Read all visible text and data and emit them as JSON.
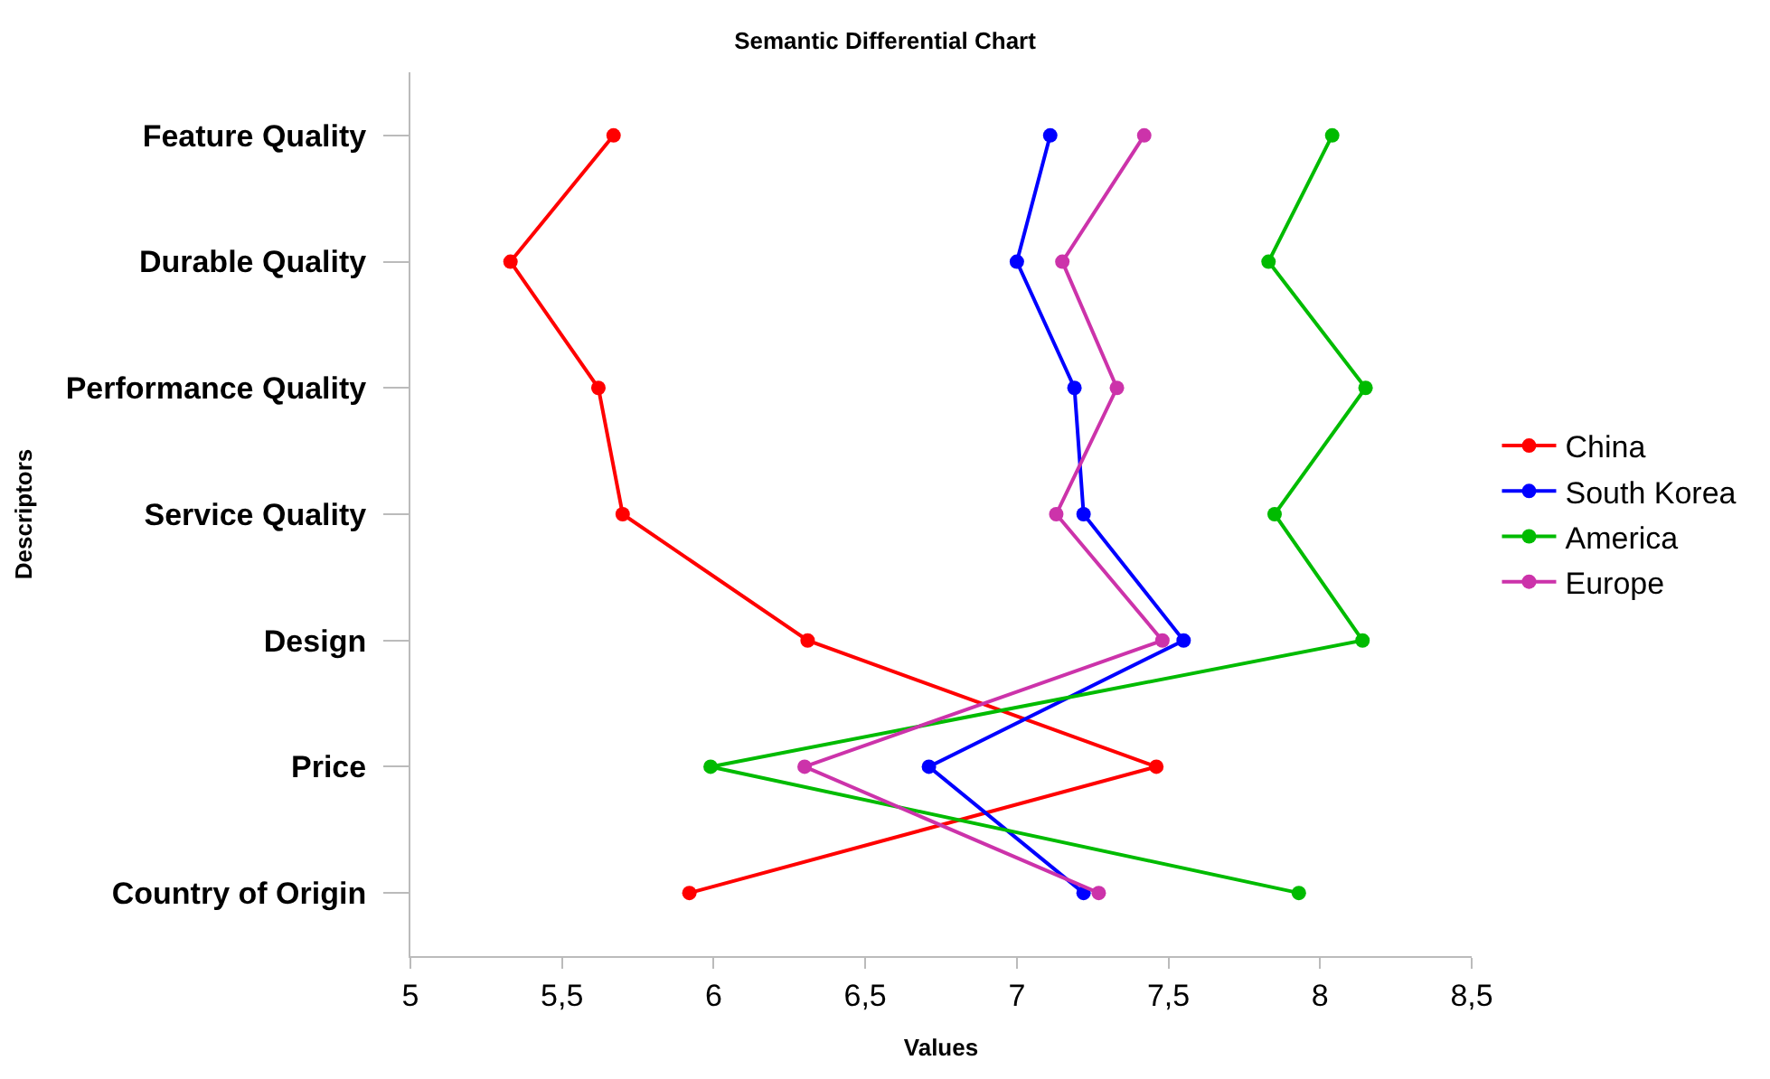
{
  "chart_data": {
    "type": "line",
    "orientation": "horizontal",
    "title": "Semantic Differential Chart",
    "xlabel": "Values",
    "ylabel": "Descriptors",
    "categories": [
      "Feature Quality",
      "Durable Quality",
      "Performance Quality",
      "Service Quality",
      "Design",
      "Price",
      "Country of Origin"
    ],
    "series": [
      {
        "name": "China",
        "color": "#ff0000",
        "values": [
          5.67,
          5.33,
          5.62,
          5.7,
          6.31,
          7.46,
          5.92
        ]
      },
      {
        "name": "South Korea",
        "color": "#0000ff",
        "values": [
          7.11,
          7.0,
          7.19,
          7.22,
          7.55,
          6.71,
          7.22
        ]
      },
      {
        "name": "America",
        "color": "#00bb00",
        "values": [
          8.04,
          7.83,
          8.15,
          7.85,
          8.14,
          5.99,
          7.93
        ]
      },
      {
        "name": "Europe",
        "color": "#cc33aa",
        "values": [
          7.42,
          7.15,
          7.33,
          7.13,
          7.48,
          6.3,
          7.27
        ]
      }
    ],
    "xlim": [
      5,
      8.5
    ],
    "xticks": [
      5,
      {
        "value": 5.5,
        "label": "5,5"
      },
      6,
      {
        "value": 6.5,
        "label": "6,5"
      },
      7,
      {
        "value": 7.5,
        "label": "7,5"
      },
      8,
      {
        "value": 8.5,
        "label": "8,5"
      }
    ],
    "legend": "right",
    "marker": "circle",
    "line_style": "solid"
  }
}
